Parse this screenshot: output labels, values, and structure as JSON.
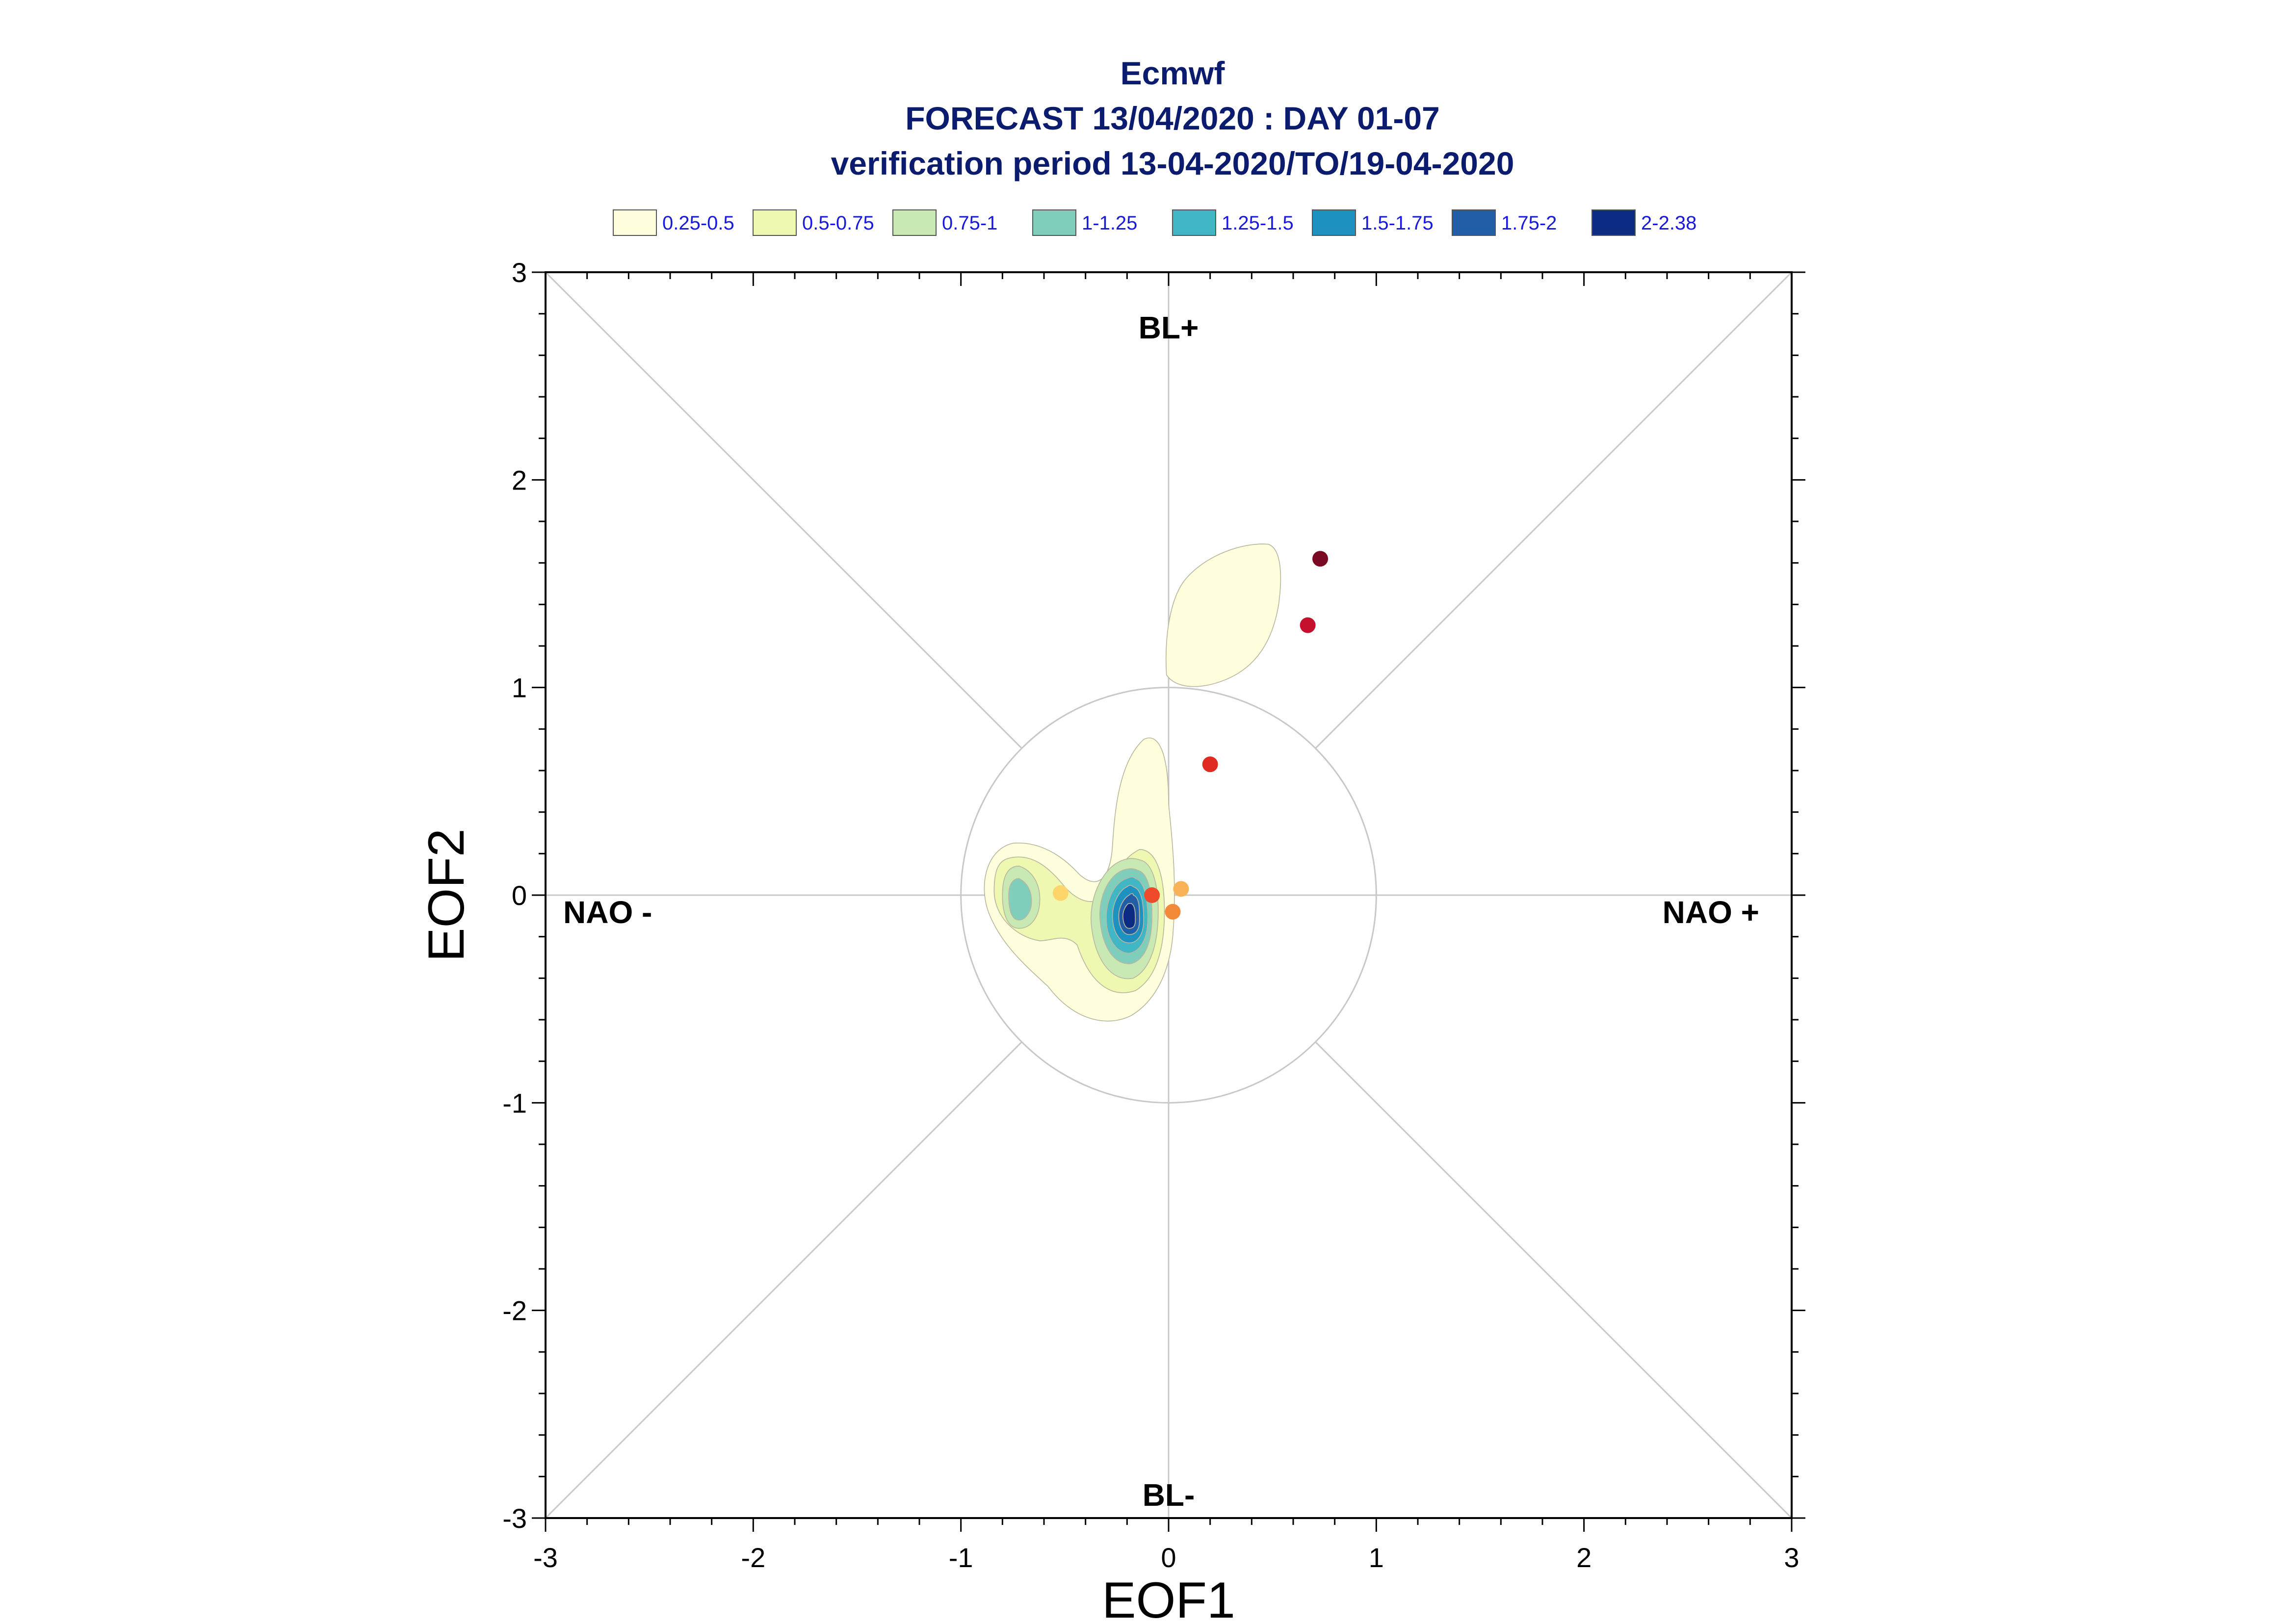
{
  "chart_data": {
    "type": "contour-scatter",
    "title": [
      "Ecmwf",
      "FORECAST 13/04/2020 : DAY 01-07",
      "verification period 13-04-2020/TO/19-04-2020"
    ],
    "xlabel": "EOF1",
    "ylabel": "EOF2",
    "xlim": [
      -3,
      3
    ],
    "ylim": [
      -3,
      3
    ],
    "xticks": [
      "-3",
      "-2",
      "-1",
      "0",
      "1",
      "2",
      "3"
    ],
    "yticks": [
      "-3",
      "-2",
      "-1",
      "0",
      "1",
      "2",
      "3"
    ],
    "regime_labels": {
      "top": "BL+",
      "bottom": "BL-",
      "left": "NAO -",
      "right": "NAO +"
    },
    "unit_circle_radius": 1,
    "grid": true,
    "legend": {
      "placement": "top",
      "entries": [
        {
          "label": "0.25-0.5",
          "color": "#ffffdd"
        },
        {
          "label": "0.5-0.75",
          "color": "#eef8b0"
        },
        {
          "label": "0.75-1",
          "color": "#c8e8b4"
        },
        {
          "label": "1-1.25",
          "color": "#7fcdbb"
        },
        {
          "label": "1.25-1.5",
          "color": "#41b6c4"
        },
        {
          "label": "1.5-1.75",
          "color": "#1d91c0"
        },
        {
          "label": "1.75-2",
          "color": "#225ea8"
        },
        {
          "label": "2-2.38",
          "color": "#0c2c84"
        }
      ]
    },
    "daily_points": [
      {
        "x": -0.52,
        "y": 0.01,
        "color": "#fdd56a"
      },
      {
        "x": -0.08,
        "y": 0.0,
        "color": "#ef4a2a"
      },
      {
        "x": 0.06,
        "y": 0.03,
        "color": "#f8b258"
      },
      {
        "x": 0.02,
        "y": -0.08,
        "color": "#f38a3a"
      },
      {
        "x": 0.2,
        "y": 0.63,
        "color": "#e02b22"
      },
      {
        "x": 0.67,
        "y": 1.3,
        "color": "#c4102c"
      },
      {
        "x": 0.73,
        "y": 1.62,
        "color": "#7a0a24"
      }
    ]
  }
}
